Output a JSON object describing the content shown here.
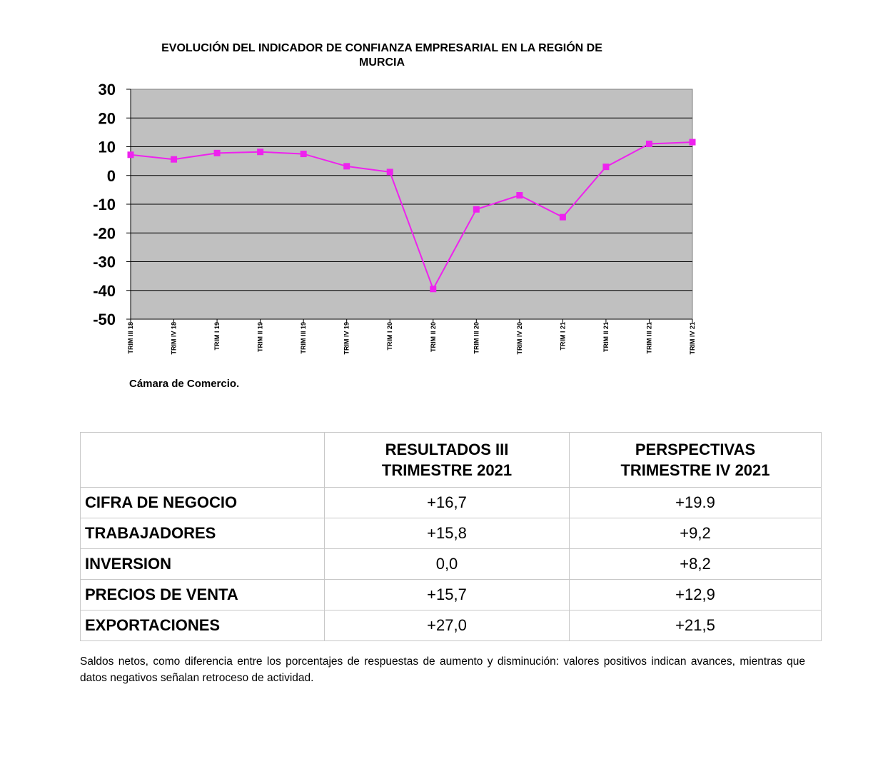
{
  "chart_data": {
    "type": "line",
    "title": "EVOLUCIÓN DEL INDICADOR DE CONFIANZA EMPRESARIAL EN LA REGIÓN DE MURCIA",
    "categories": [
      "TRIM III 18",
      "TRIM IV 18",
      "TRIM I 19",
      "TRIM II 19",
      "TRIM III 19",
      "TRIM IV 19",
      "TRIM I 20",
      "TRIM II 20",
      "TRIM III 20",
      "TRIM IV 20",
      "TRIM I 21",
      "TRIM II 21",
      "TRIM III 21",
      "TRIM IV 21"
    ],
    "series": [
      {
        "values": [
          7.2,
          5.6,
          7.8,
          8.2,
          7.5,
          3.2,
          1.2,
          -39.5,
          -11.8,
          -6.9,
          -14.5,
          3.0,
          11.0,
          11.6
        ]
      }
    ],
    "y_ticks": [
      "30",
      "20",
      "10",
      "0",
      "-10",
      "-20",
      "-30",
      "-40",
      "-50"
    ],
    "ylim": [
      -50,
      30
    ],
    "grid": true,
    "xlabel": "",
    "ylabel": "",
    "colors": {
      "line": "#ee22ee",
      "plot_bg": "#c0c0c0"
    }
  },
  "source": "Cámara de Comercio.",
  "table": {
    "headers": [
      "",
      "RESULTADOS III TRIMESTRE 2021",
      "PERSPECTIVAS TRIMESTRE IV 2021"
    ],
    "rows": [
      {
        "label": "CIFRA DE NEGOCIO",
        "resultados": "+16,7",
        "perspectivas": "+19.9"
      },
      {
        "label": "TRABAJADORES",
        "resultados": "+15,8",
        "perspectivas": "+9,2"
      },
      {
        "label": "INVERSION",
        "resultados": "0,0",
        "perspectivas": "+8,2"
      },
      {
        "label": "PRECIOS DE VENTA",
        "resultados": "+15,7",
        "perspectivas": "+12,9"
      },
      {
        "label": "EXPORTACIONES",
        "resultados": "+27,0",
        "perspectivas": "+21,5"
      }
    ]
  },
  "footnote": "Saldos netos, como diferencia entre los porcentajes de respuestas de aumento y disminución: valores positivos indican avances, mientras que datos negativos señalan retroceso de actividad."
}
